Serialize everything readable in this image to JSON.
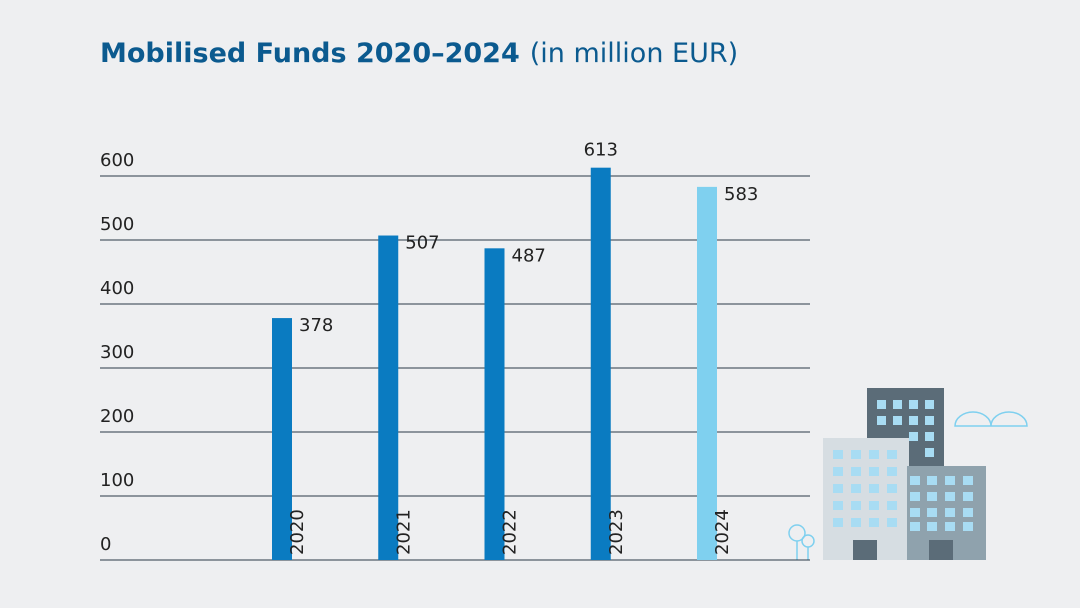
{
  "chart_data": {
    "type": "bar",
    "title": "Mobilised Funds 2020–2024",
    "subtitle": "(in million EUR)",
    "categories": [
      "2020",
      "2021",
      "2022",
      "2023",
      "2024"
    ],
    "values": [
      378,
      507,
      487,
      613,
      583
    ],
    "colors": [
      "#0a7bc1",
      "#0a7bc1",
      "#0a7bc1",
      "#0a7bc1",
      "#7fd0ef"
    ],
    "ylim": [
      0,
      600
    ],
    "yticks": [
      0,
      100,
      200,
      300,
      400,
      500,
      600
    ],
    "grid": true
  }
}
